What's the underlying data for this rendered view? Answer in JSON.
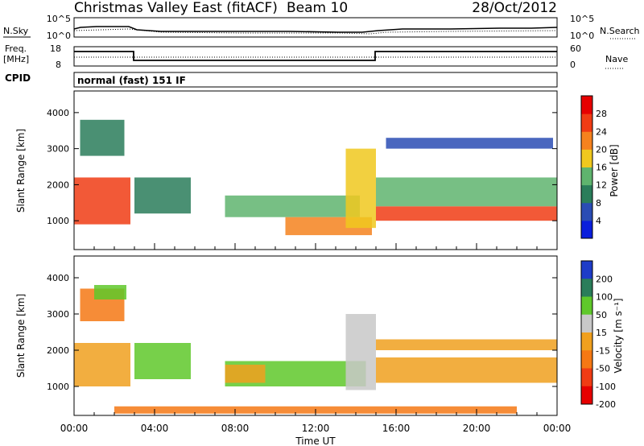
{
  "header": {
    "title": "Christmas Valley East (fitACF)",
    "beam": "Beam 10",
    "date": "28/Oct/2012"
  },
  "aux": {
    "nsky_label": "N.Sky",
    "nsearch_label": "N.Search",
    "freq_label_1": "Freq.",
    "freq_label_2": "[MHz]",
    "nave_label": "Nave",
    "cpid_label": "CPID",
    "cpid_text": "normal (fast) 151 IF",
    "noise_left_ticks": [
      "10^5",
      "10^0"
    ],
    "noise_right_ticks": [
      "10^5",
      "10^0"
    ],
    "freq_ticks": [
      "18",
      "8"
    ],
    "nave_ticks": [
      "60",
      "0"
    ]
  },
  "panels": {
    "ylabel": "Slant Range [km]",
    "y_ticks": [
      "1000",
      "2000",
      "3000",
      "4000"
    ],
    "xlabel": "Time UT",
    "x_ticks": [
      "00:00",
      "04:00",
      "08:00",
      "12:00",
      "16:00",
      "20:00",
      "00:00"
    ]
  },
  "power_scale": {
    "label": "Power [dB]",
    "ticks": [
      "4",
      "8",
      "12",
      "16",
      "20",
      "24",
      "28"
    ],
    "colors": [
      "#0a1edc",
      "#2a4cb4",
      "#2a7d5a",
      "#5fb46e",
      "#f0c81e",
      "#f5821e",
      "#f03c14",
      "#e60000"
    ]
  },
  "velocity_scale": {
    "label": "Velocity [m s⁻¹]",
    "ticks": [
      "200",
      "100",
      "50",
      "15",
      "-15",
      "-50",
      "-100",
      "-200"
    ],
    "colors": [
      "#1e3cc8",
      "#2a7d5a",
      "#5fc82a",
      "#c8c8c8",
      "#f0a01e",
      "#f57814",
      "#f03c14",
      "#e60000"
    ]
  },
  "chart_data": [
    {
      "type": "heatmap",
      "name": "Power",
      "x_unit": "hours UT",
      "xlim": [
        0,
        24
      ],
      "ylim": [
        200,
        4600
      ],
      "colorbar_label": "Power [dB]",
      "bands": [
        {
          "t0": 0.0,
          "t1": 2.8,
          "r0": 900,
          "r1": 2200,
          "value": 25
        },
        {
          "t0": 0.3,
          "t1": 2.5,
          "r0": 2800,
          "r1": 3800,
          "value": 10
        },
        {
          "t0": 3.0,
          "t1": 5.8,
          "r0": 1200,
          "r1": 2200,
          "value": 8
        },
        {
          "t0": 7.5,
          "t1": 14.2,
          "r0": 1100,
          "r1": 1700,
          "value": 14
        },
        {
          "t0": 10.5,
          "t1": 14.8,
          "r0": 600,
          "r1": 1100,
          "value": 20
        },
        {
          "t0": 13.5,
          "t1": 15.0,
          "r0": 800,
          "r1": 3000,
          "value": 16
        },
        {
          "t0": 15.0,
          "t1": 24.0,
          "r0": 1000,
          "r1": 1400,
          "value": 27
        },
        {
          "t0": 15.0,
          "t1": 24.0,
          "r0": 1400,
          "r1": 2200,
          "value": 13
        },
        {
          "t0": 15.5,
          "t1": 23.8,
          "r0": 3000,
          "r1": 3300,
          "value": 6
        }
      ]
    },
    {
      "type": "heatmap",
      "name": "Velocity",
      "x_unit": "hours UT",
      "xlim": [
        0,
        24
      ],
      "ylim": [
        200,
        4600
      ],
      "colorbar_label": "Velocity [m s⁻¹]",
      "bands": [
        {
          "t0": 0.0,
          "t1": 2.8,
          "r0": 1000,
          "r1": 2200,
          "value": 0
        },
        {
          "t0": 0.3,
          "t1": 2.5,
          "r0": 2800,
          "r1": 3700,
          "value": -40
        },
        {
          "t0": 1.0,
          "t1": 2.6,
          "r0": 3400,
          "r1": 3800,
          "value": 60
        },
        {
          "t0": 3.0,
          "t1": 5.8,
          "r0": 1200,
          "r1": 2200,
          "value": 60
        },
        {
          "t0": 7.5,
          "t1": 14.5,
          "r0": 1000,
          "r1": 1700,
          "value": 50
        },
        {
          "t0": 7.5,
          "t1": 9.5,
          "r0": 1100,
          "r1": 1600,
          "value": 0
        },
        {
          "t0": 13.5,
          "t1": 15.0,
          "r0": 900,
          "r1": 3000,
          "value": 40
        },
        {
          "t0": 15.0,
          "t1": 24.0,
          "r0": 1100,
          "r1": 1800,
          "value": 0
        },
        {
          "t0": 15.0,
          "t1": 24.0,
          "r0": 2000,
          "r1": 2300,
          "value": -10
        },
        {
          "t0": 2.0,
          "t1": 22.0,
          "r0": 250,
          "r1": 450,
          "value": -30
        }
      ]
    }
  ]
}
